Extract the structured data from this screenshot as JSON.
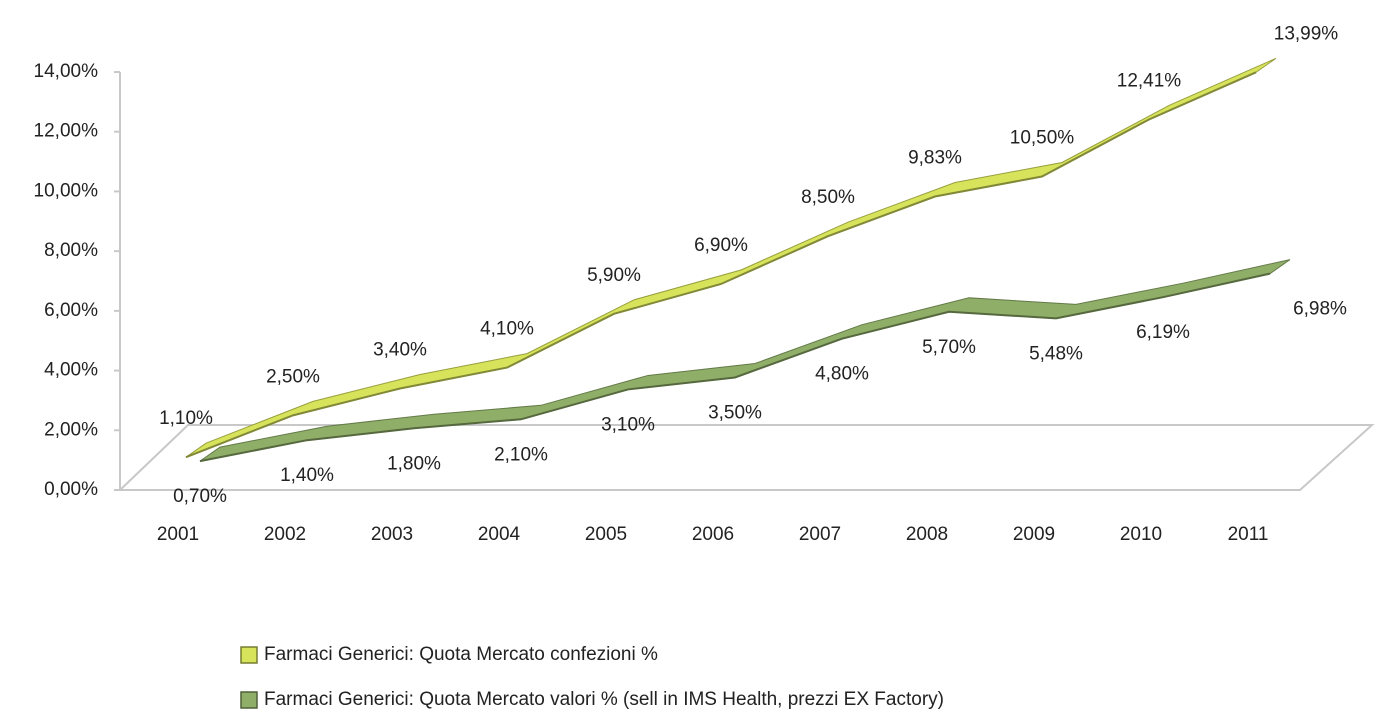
{
  "chart_data": {
    "type": "line3d",
    "categories": [
      "2001",
      "2002",
      "2003",
      "2004",
      "2005",
      "2006",
      "2007",
      "2008",
      "2009",
      "2010",
      "2011"
    ],
    "series": [
      {
        "name": "Farmaci Generici: Quota Mercato confezioni %",
        "color": "#d7e35a",
        "values": [
          1.1,
          2.5,
          3.4,
          4.1,
          5.9,
          6.9,
          8.5,
          9.83,
          10.5,
          12.41,
          13.99
        ],
        "value_labels": [
          "1,10%",
          "2,50%",
          "3,40%",
          "4,10%",
          "5,90%",
          "6,90%",
          "8,50%",
          "9,83%",
          "10,50%",
          "12,41%",
          "13,99%"
        ]
      },
      {
        "name": "Farmaci Generici: Quota Mercato valori % (sell in IMS Health, prezzi EX Factory)",
        "color": "#8fae68",
        "values": [
          0.7,
          1.4,
          1.8,
          2.1,
          3.1,
          3.5,
          4.8,
          5.7,
          5.48,
          6.19,
          6.98
        ],
        "value_labels": [
          "0,70%",
          "1,40%",
          "1,80%",
          "2,10%",
          "3,10%",
          "3,50%",
          "4,80%",
          "5,70%",
          "5,48%",
          "6,19%",
          "6,98%"
        ]
      }
    ],
    "ylim": [
      0,
      14
    ],
    "yticks": [
      {
        "value": 0,
        "label": "0,00%"
      },
      {
        "value": 2,
        "label": "2,00%"
      },
      {
        "value": 4,
        "label": "4,00%"
      },
      {
        "value": 6,
        "label": "6,00%"
      },
      {
        "value": 8,
        "label": "8,00%"
      },
      {
        "value": 10,
        "label": "10,00%"
      },
      {
        "value": 12,
        "label": "12,00%"
      },
      {
        "value": 14,
        "label": "14,00%"
      }
    ],
    "legend": "bottom"
  }
}
